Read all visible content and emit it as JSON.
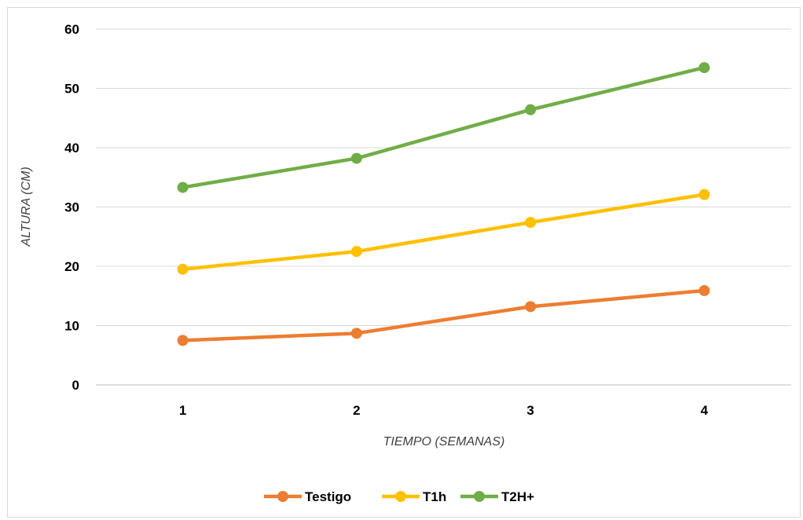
{
  "chart_data": {
    "type": "line",
    "categories": [
      "1",
      "2",
      "3",
      "4"
    ],
    "series": [
      {
        "name": "Testigo",
        "values": [
          7.5,
          8.7,
          13.2,
          15.9
        ],
        "color": "#ED7D31"
      },
      {
        "name": "T1h",
        "values": [
          19.5,
          22.5,
          27.4,
          32.1
        ],
        "color": "#FFC000"
      },
      {
        "name": "T2H+",
        "values": [
          33.3,
          38.2,
          46.4,
          53.5
        ],
        "color": "#70AD47"
      }
    ],
    "xlabel": "TIEMPO (SEMANAS)",
    "ylabel": "ALTURA (CM)",
    "ylim": [
      0,
      60
    ],
    "yticks": [
      0,
      10,
      20,
      30,
      40,
      50,
      60
    ],
    "grid": true,
    "legend": "bottom"
  }
}
